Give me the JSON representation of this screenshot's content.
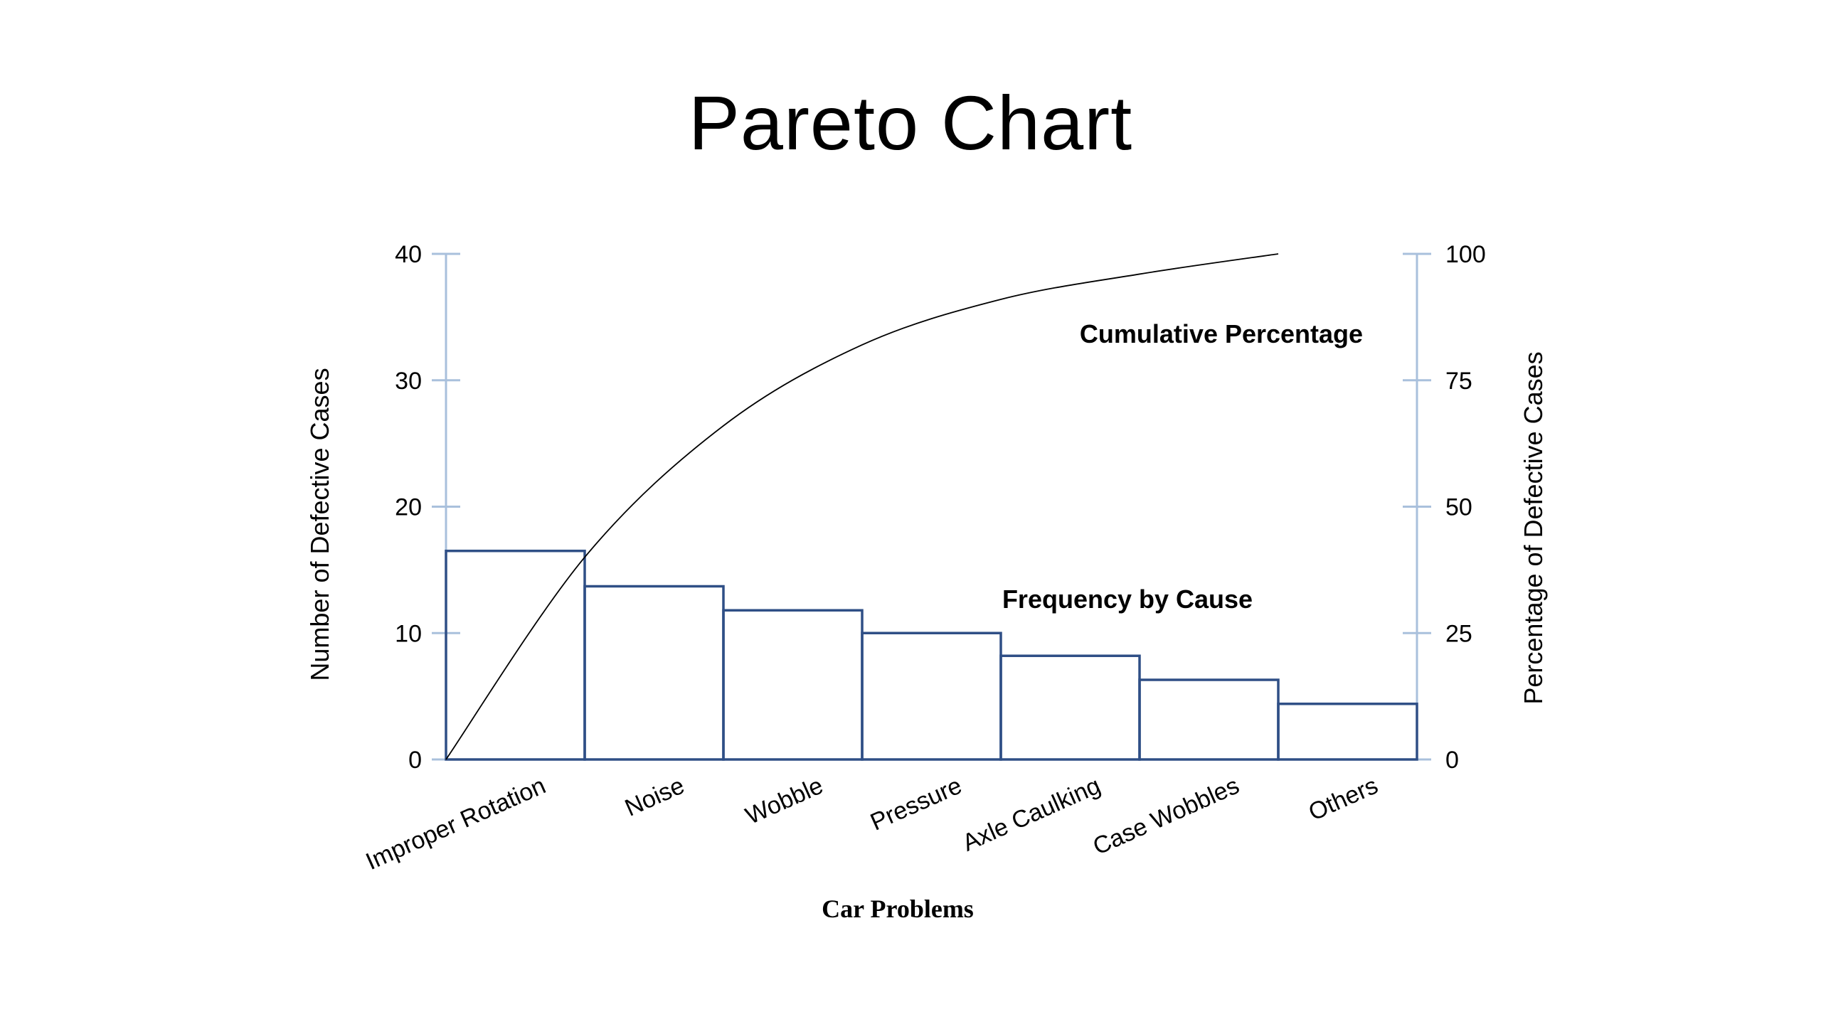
{
  "slide": {
    "title": "Pareto Chart"
  },
  "chart_data": {
    "type": "bar",
    "title": "Pareto Chart",
    "categories": [
      "Improper Rotation",
      "Noise",
      "Wobble",
      "Pressure",
      "Axle Caulking",
      "Case Wobbles",
      "Others"
    ],
    "series": [
      {
        "name": "Frequency by Cause",
        "type": "bar",
        "axis": "left",
        "values": [
          16.5,
          13.7,
          11.8,
          10,
          8.2,
          6.3,
          4.4
        ]
      },
      {
        "name": "Cumulative Percentage",
        "type": "line",
        "axis": "right",
        "smooth": true,
        "values": [
          0,
          40,
          66,
          82,
          91,
          96,
          100
        ]
      }
    ],
    "xlabel": "Car Problems",
    "ylabel": "Number of Defective Cases",
    "y2label": "Percentage  of Defective Cases",
    "ylim": [
      0,
      40
    ],
    "y2lim": [
      0,
      100
    ],
    "yticks": [
      "0",
      "10",
      "20",
      "30",
      "40"
    ],
    "y2ticks": [
      "0",
      "25",
      "50",
      "75",
      "100"
    ],
    "grid": false,
    "annotations": [
      "Cumulative Percentage",
      "Frequency by Cause"
    ],
    "colors": {
      "bar_stroke": "#2f4f86",
      "axis": "#a9c0dc",
      "line": "#000000"
    }
  }
}
